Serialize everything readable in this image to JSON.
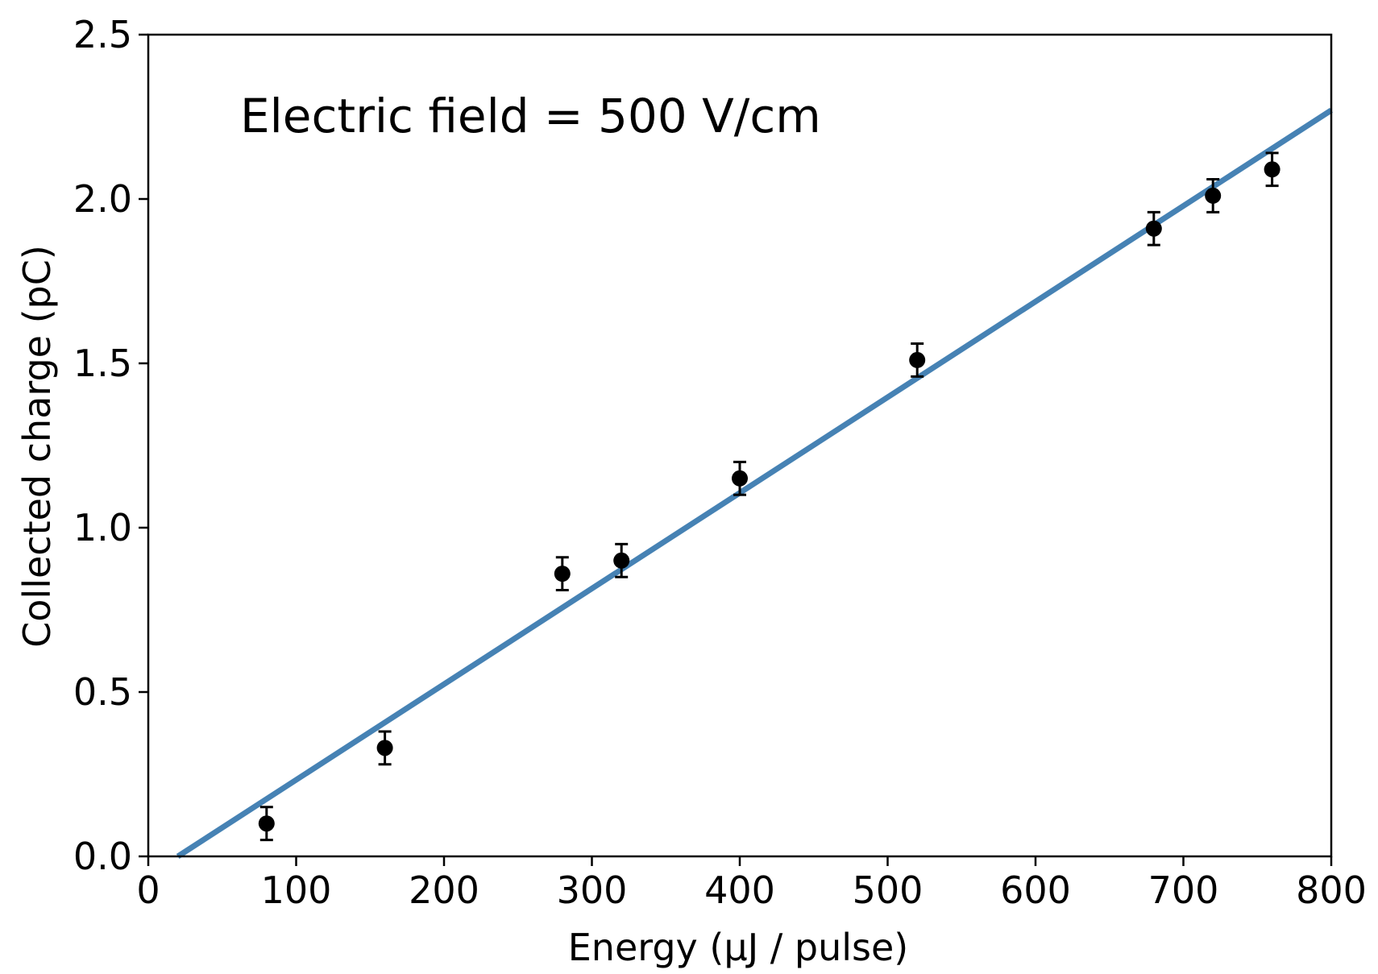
{
  "chart_data": {
    "type": "scatter",
    "xlabel": "Energy (μJ / pulse)",
    "ylabel": "Collected charge (pC)",
    "xlim": [
      0,
      800
    ],
    "ylim": [
      0,
      2.5
    ],
    "x_ticks": [
      "0",
      "100",
      "200",
      "300",
      "400",
      "500",
      "600",
      "700",
      "800"
    ],
    "y_ticks": [
      "0.0",
      "0.5",
      "1.0",
      "1.5",
      "2.0",
      "2.5"
    ],
    "grid": false,
    "annotation": "Electric field = 500 V/cm",
    "series": [
      {
        "points": [
          {
            "x": 80,
            "y": 0.1,
            "yerr": 0.05
          },
          {
            "x": 160,
            "y": 0.33,
            "yerr": 0.05
          },
          {
            "x": 280,
            "y": 0.86,
            "yerr": 0.05
          },
          {
            "x": 320,
            "y": 0.9,
            "yerr": 0.05
          },
          {
            "x": 400,
            "y": 1.15,
            "yerr": 0.05
          },
          {
            "x": 520,
            "y": 1.51,
            "yerr": 0.05
          },
          {
            "x": 680,
            "y": 1.91,
            "yerr": 0.05
          },
          {
            "x": 720,
            "y": 2.01,
            "yerr": 0.05
          },
          {
            "x": 760,
            "y": 2.09,
            "yerr": 0.05
          }
        ],
        "color": "#000000"
      },
      {
        "kind": "fit-line",
        "x": [
          20,
          800
        ],
        "y": [
          0.0,
          2.27
        ],
        "color": "#4682b4"
      }
    ]
  }
}
